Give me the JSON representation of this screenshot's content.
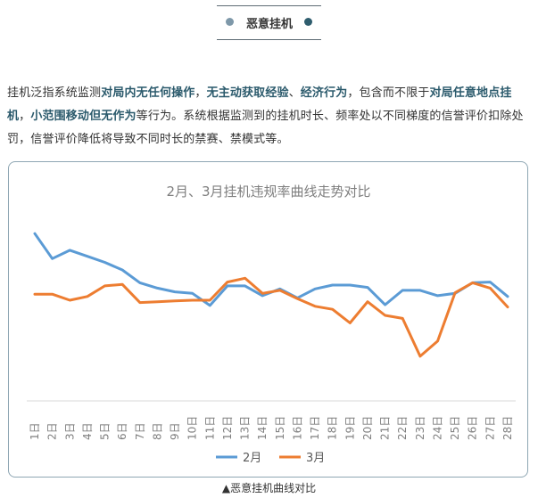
{
  "header": {
    "title": "恶意挂机",
    "accent_colors": [
      "#7e98a9",
      "#2f5d6e"
    ]
  },
  "intro": {
    "segments": [
      {
        "text": "挂机泛指系统监测",
        "strong": false
      },
      {
        "text": "对局内无任何操作",
        "strong": true
      },
      {
        "text": "，",
        "strong": false
      },
      {
        "text": "无主动获取经验",
        "strong": true
      },
      {
        "text": "、",
        "strong": false
      },
      {
        "text": "经济行为",
        "strong": true
      },
      {
        "text": "，包含而不限于",
        "strong": false
      },
      {
        "text": "对局任意地点挂机",
        "strong": true
      },
      {
        "text": "，",
        "strong": false
      },
      {
        "text": "小范围移动但无作为",
        "strong": true
      },
      {
        "text": "等行为。系统根据监测到的挂机时长、频率处以不同梯度的信誉评价扣除处罚，信誉评价降低将导致不同时长的禁赛、禁模式等。",
        "strong": false
      }
    ],
    "highlight_color": "#2b5a6c"
  },
  "chart_data": {
    "type": "line",
    "title": "2月、3月挂机违规率曲线走势对比",
    "xlabel": "",
    "ylabel": "",
    "categories": [
      "1日",
      "2日",
      "3日",
      "4日",
      "5日",
      "6日",
      "7日",
      "8日",
      "9日",
      "10日",
      "11日",
      "12日",
      "13日",
      "14日",
      "15日",
      "16日",
      "17日",
      "18日",
      "19日",
      "20日",
      "21日",
      "22日",
      "23日",
      "24日",
      "25日",
      "26日",
      "27日",
      "28日"
    ],
    "ylim": [
      0,
      100
    ],
    "grid": false,
    "legend": "bottom",
    "series": [
      {
        "name": "2月",
        "color": "#5b9bd5",
        "values": [
          94,
          77.5,
          83,
          79,
          75,
          70,
          61.5,
          58,
          55.5,
          54.5,
          46.5,
          59.5,
          59.5,
          53,
          57.5,
          51.5,
          57.5,
          60,
          60,
          58.5,
          47,
          56.5,
          56.5,
          53,
          54.5,
          61.5,
          62,
          52.5
        ]
      },
      {
        "name": "3月",
        "color": "#ed7d31",
        "values": [
          54,
          54,
          50,
          52.5,
          59.5,
          60.5,
          48.5,
          49,
          49.5,
          50,
          50,
          62,
          64.5,
          54.5,
          56.5,
          51,
          46,
          44,
          35,
          49,
          40,
          38,
          13,
          23,
          55,
          61.5,
          58,
          45.5
        ]
      }
    ]
  },
  "caption": "▲恶意挂机曲线对比"
}
